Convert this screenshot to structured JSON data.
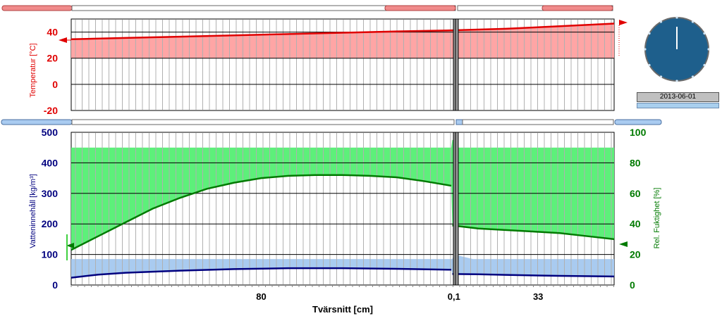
{
  "chart_data": [
    {
      "type": "line",
      "title": "",
      "xlabel": "",
      "ylabel": "Temperatur [°C]",
      "ylim": [
        -20,
        50
      ],
      "yticks": [
        "40",
        "20",
        "0",
        "-20"
      ],
      "grid": true,
      "series": [
        {
          "color": "#e00000",
          "x": [
            0,
            0.1,
            0.2,
            0.3,
            0.4,
            0.5,
            0.6,
            0.7,
            0.8,
            0.9,
            1.0
          ],
          "values": [
            34.5,
            35.5,
            36.5,
            37.5,
            38.5,
            39.5,
            40.5,
            41.3,
            42.5,
            44.5,
            46.5
          ]
        }
      ],
      "band": {
        "color": "#ffa5a5",
        "lower": 20,
        "upper_follows_series": true
      }
    },
    {
      "type": "line",
      "title": "",
      "xlabel": "Tvärsnitt [cm]",
      "xticks": [
        "80",
        "0,1",
        "33"
      ],
      "ylabel": "Vatteninnehåll [kg/m³]",
      "ylim": [
        0,
        500
      ],
      "yticks": [
        "500",
        "400",
        "300",
        "200",
        "100",
        "0"
      ],
      "y2label": "Rel. Fuktighet [%]",
      "y2lim": [
        0,
        100
      ],
      "y2ticks": [
        "100",
        "80",
        "60",
        "40",
        "20",
        "0"
      ],
      "grid": true,
      "series": [
        {
          "color": "#007a00",
          "axis": "right",
          "x": [
            0,
            0.05,
            0.1,
            0.15,
            0.2,
            0.25,
            0.3,
            0.35,
            0.4,
            0.45,
            0.5,
            0.55,
            0.6,
            0.65,
            0.7,
            0.702,
            0.75,
            0.8,
            0.85,
            0.9,
            0.95,
            1.0
          ],
          "values": [
            23,
            32,
            41,
            50,
            57,
            63,
            67,
            70,
            71.5,
            72,
            72,
            71.5,
            70.5,
            68,
            65,
            39,
            37,
            36,
            35,
            34,
            32,
            30
          ]
        },
        {
          "color": "#00007f",
          "axis": "left",
          "x": [
            0,
            0.05,
            0.1,
            0.2,
            0.3,
            0.4,
            0.5,
            0.6,
            0.7,
            0.702,
            0.75,
            0.8,
            0.9,
            1.0
          ],
          "values": [
            24,
            34,
            40,
            47,
            52,
            55,
            55,
            53,
            50,
            36,
            35,
            33,
            30,
            28
          ]
        }
      ],
      "bands": [
        {
          "color": "#5df07a",
          "axis": "right",
          "upper": 90
        },
        {
          "color": "#a9cbf0",
          "axis": "left",
          "upper": 85
        }
      ]
    }
  ],
  "clock": {
    "hand": "12 o'clock",
    "face_color": "#1e5f8c"
  },
  "date_label": "2013-06-01"
}
